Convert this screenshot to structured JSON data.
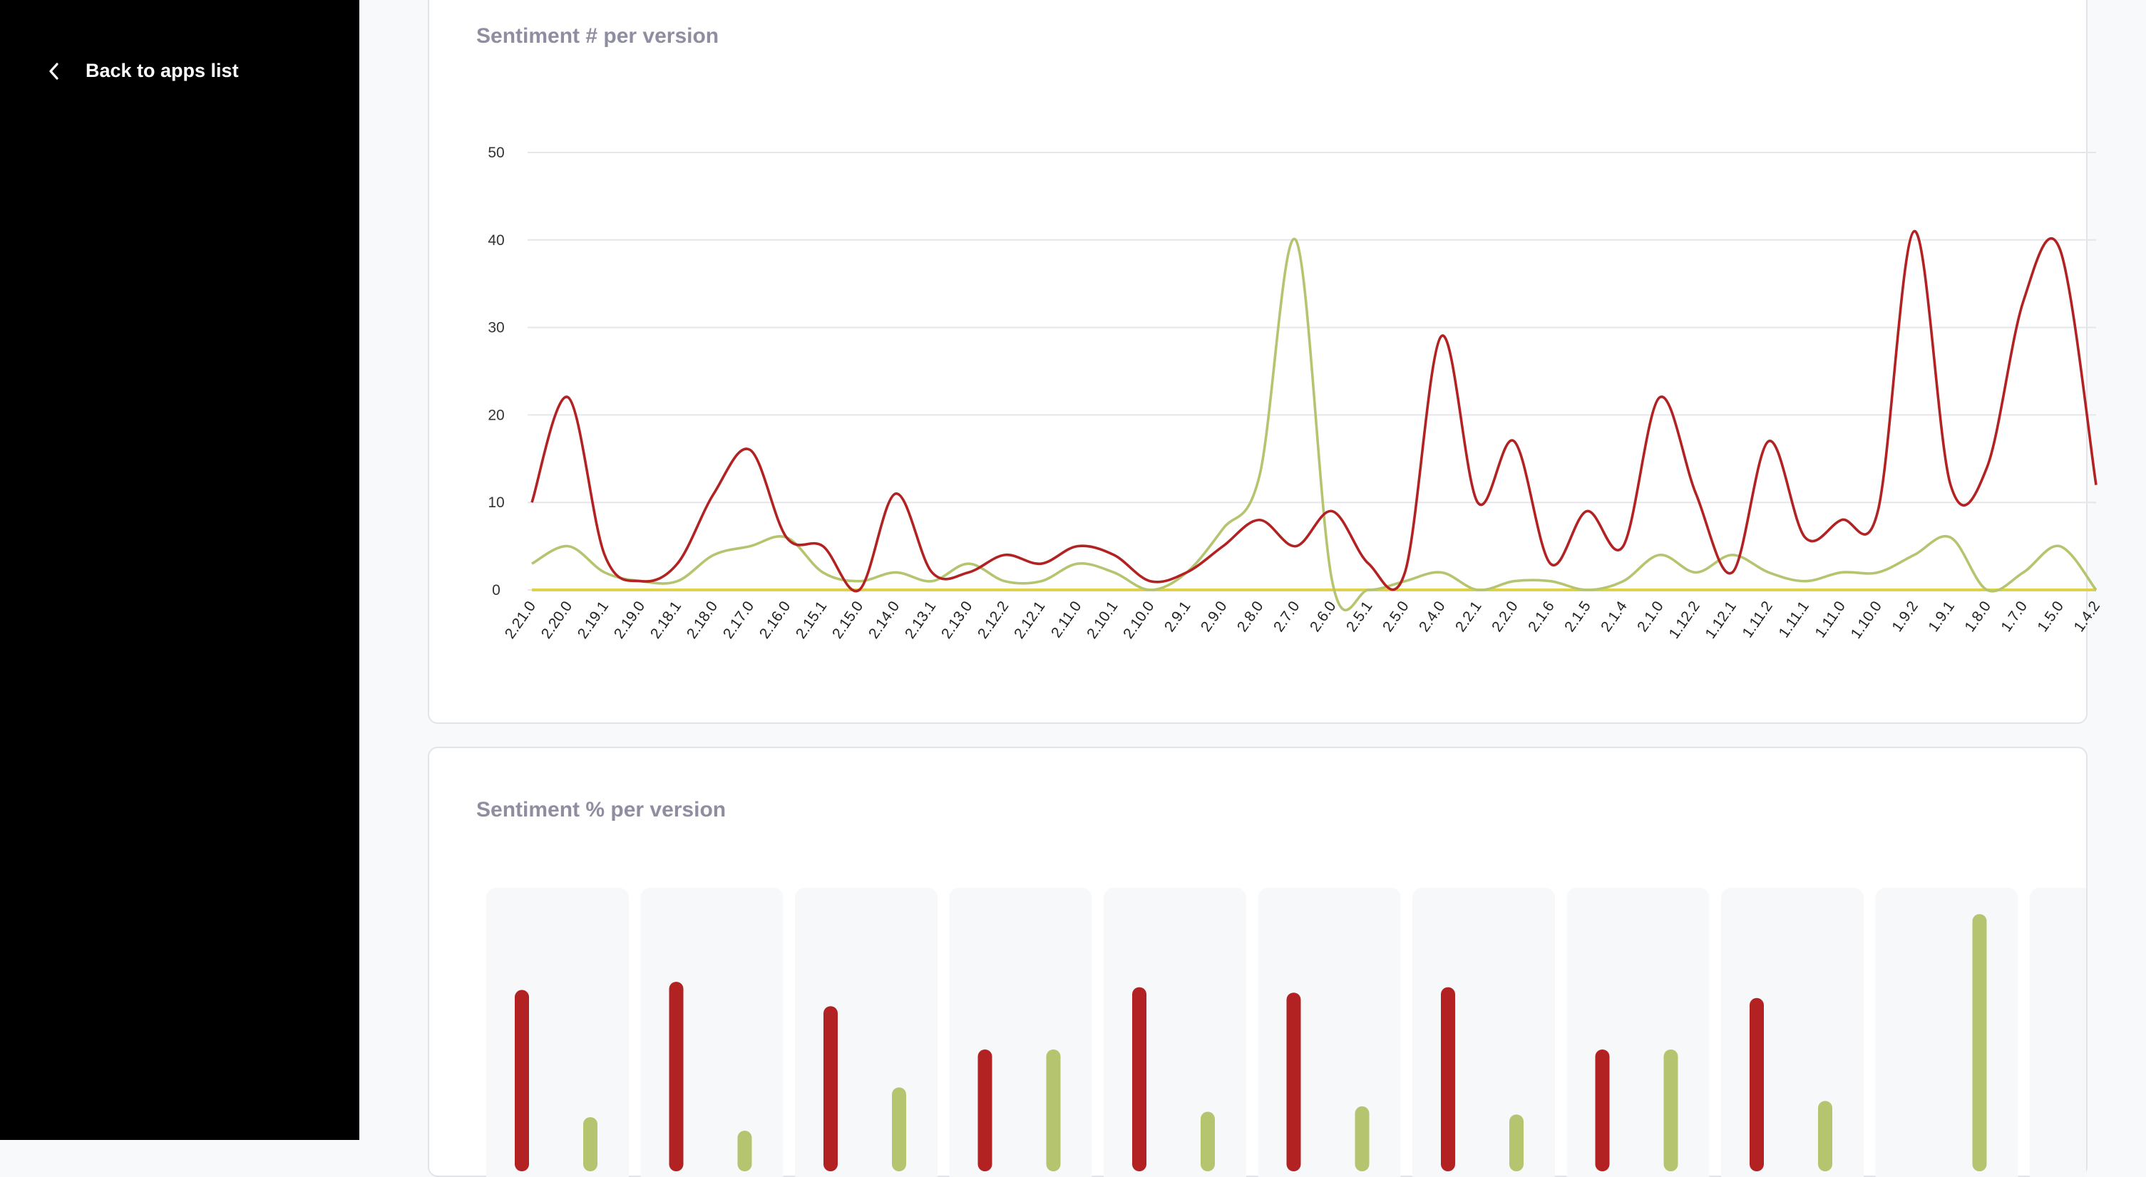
{
  "sidebar": {
    "back_label": "Back to apps list"
  },
  "colors": {
    "negative": "#b22222",
    "positive": "#b5c46f",
    "neutral": "#dfd24a",
    "grid": "#e6e6ea"
  },
  "chart_data": [
    {
      "type": "line",
      "title": "Sentiment # per version",
      "ylim": [
        0,
        50
      ],
      "yticks": [
        0,
        10,
        20,
        30,
        40,
        50
      ],
      "categories": [
        "2.21.0",
        "2.20.0",
        "2.19.1",
        "2.19.0",
        "2.18.1",
        "2.18.0",
        "2.17.0",
        "2.16.0",
        "2.15.1",
        "2.15.0",
        "2.14.0",
        "2.13.1",
        "2.13.0",
        "2.12.2",
        "2.12.1",
        "2.11.0",
        "2.10.1",
        "2.10.0",
        "2.9.1",
        "2.9.0",
        "2.8.0",
        "2.7.0",
        "2.6.0",
        "2.5.1",
        "2.5.0",
        "2.4.0",
        "2.2.1",
        "2.2.0",
        "2.1.6",
        "2.1.5",
        "2.1.4",
        "2.1.0",
        "1.12.2",
        "1.12.1",
        "1.11.2",
        "1.11.1",
        "1.11.0",
        "1.10.0",
        "1.9.2",
        "1.9.1",
        "1.8.0",
        "1.7.0",
        "1.5.0",
        "1.4.2"
      ],
      "series": [
        {
          "name": "negative",
          "values": [
            10,
            22,
            4,
            1,
            3,
            11,
            16,
            6,
            5,
            0,
            11,
            2,
            2,
            4,
            3,
            5,
            4,
            1,
            2,
            5,
            8,
            5,
            9,
            3,
            2,
            29,
            10,
            17,
            3,
            9,
            5,
            22,
            11,
            2,
            17,
            6,
            8,
            9,
            41,
            12,
            14,
            33,
            39,
            12
          ]
        },
        {
          "name": "positive",
          "values": [
            3,
            5,
            2,
            1,
            1,
            4,
            5,
            6,
            2,
            1,
            2,
            1,
            3,
            1,
            1,
            3,
            2,
            0,
            2,
            7,
            13,
            40,
            1,
            0,
            1,
            2,
            0,
            1,
            1,
            0,
            1,
            4,
            2,
            4,
            2,
            1,
            2,
            2,
            4,
            6,
            0,
            2,
            5,
            0
          ]
        },
        {
          "name": "neutral",
          "values": [
            0,
            0,
            0,
            0,
            0,
            0,
            0,
            0,
            0,
            0,
            0,
            0,
            0,
            0,
            0,
            0,
            0,
            0,
            0,
            0,
            0,
            0,
            0,
            0,
            0,
            0,
            0,
            0,
            0,
            0,
            0,
            0,
            0,
            0,
            0,
            0,
            0,
            0,
            0,
            0,
            0,
            0,
            0,
            0
          ]
        }
      ]
    },
    {
      "type": "bar",
      "title": "Sentiment % per version",
      "ylim": [
        0,
        100
      ],
      "groups": [
        {
          "negative": 67,
          "positive": 20
        },
        {
          "negative": 70,
          "positive": 15
        },
        {
          "negative": 61,
          "positive": 31
        },
        {
          "negative": 45,
          "positive": 45
        },
        {
          "negative": 68,
          "positive": 22
        },
        {
          "negative": 66,
          "positive": 24
        },
        {
          "negative": 68,
          "positive": 21
        },
        {
          "negative": 45,
          "positive": 45
        },
        {
          "negative": 64,
          "positive": 26
        },
        {
          "negative": 0,
          "positive": 95
        }
      ]
    }
  ]
}
